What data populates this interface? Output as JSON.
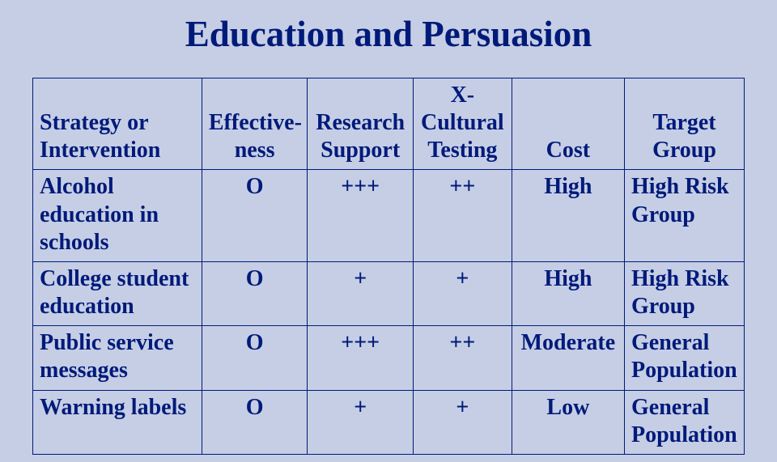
{
  "title": "Education and Persuasion",
  "columns": [
    "Strategy or Intervention",
    "Effective-ness",
    "Research Support",
    "X-Cultural Testing",
    "Cost",
    "Target Group"
  ],
  "rows": [
    {
      "strategy": "Alcohol education in schools",
      "effectiveness": "O",
      "research": "+++",
      "xcultural": "++",
      "cost": "High",
      "target": "High Risk Group"
    },
    {
      "strategy": "College student education",
      "effectiveness": "O",
      "research": "+",
      "xcultural": "+",
      "cost": "High",
      "target": "High Risk Group"
    },
    {
      "strategy": "Public service messages",
      "effectiveness": "O",
      "research": "+++",
      "xcultural": "++",
      "cost": "Moderate",
      "target": "General Population"
    },
    {
      "strategy": "Warning labels",
      "effectiveness": "O",
      "research": "+",
      "xcultural": "+",
      "cost": "Low",
      "target": "General Population"
    }
  ],
  "style": {
    "background_color": "#c6cee5",
    "text_color": "#001a7a",
    "border_color": "#001a7a",
    "title_fontsize": 45,
    "cell_fontsize": 28,
    "font_family": "Times New Roman",
    "header_align": [
      "left",
      "center",
      "center",
      "center",
      "center",
      "center"
    ],
    "body_align": [
      "left",
      "center",
      "center",
      "center",
      "center",
      "left"
    ],
    "col_widths_pct": [
      24,
      15,
      15,
      14,
      16,
      17
    ]
  }
}
